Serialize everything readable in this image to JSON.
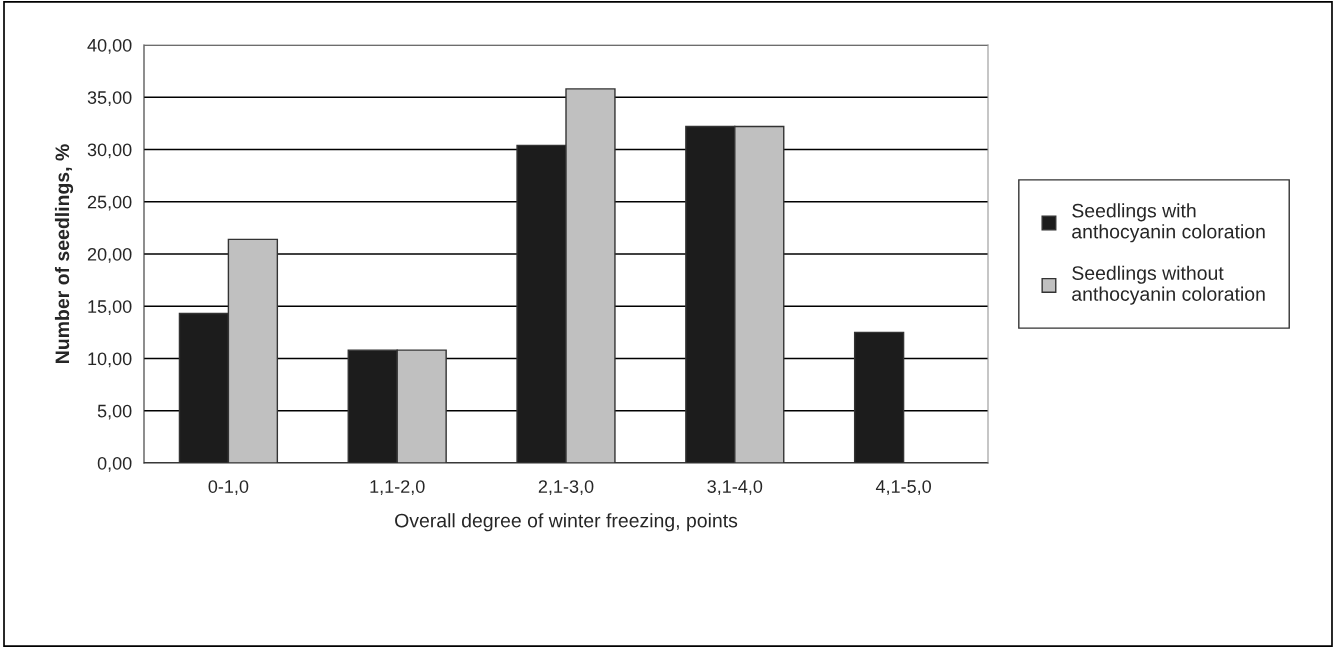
{
  "chart_data": {
    "type": "bar",
    "xlabel": "Overall degree of winter freezing, points",
    "ylabel": "Number of seedlings, %",
    "categories": [
      "0-1,0",
      "1,1-2,0",
      "2,1-3,0",
      "3,1-4,0",
      "4,1-5,0"
    ],
    "series": [
      {
        "name": "Seedlings with anthocyanin coloration",
        "color": "#1c1c1c",
        "values": [
          14.3,
          10.8,
          30.4,
          32.2,
          12.5
        ]
      },
      {
        "name": "Seedlings without anthocyanin coloration",
        "color": "#c0c0c0",
        "values": [
          21.4,
          10.8,
          35.8,
          32.2,
          null
        ]
      }
    ],
    "ylim": [
      0,
      40
    ],
    "yticks": [
      {
        "value": 0,
        "label": "0,00"
      },
      {
        "value": 5,
        "label": "5,00"
      },
      {
        "value": 10,
        "label": "10,00"
      },
      {
        "value": 15,
        "label": "15,00"
      },
      {
        "value": 20,
        "label": "20,00"
      },
      {
        "value": 25,
        "label": "25,00"
      },
      {
        "value": 30,
        "label": "30,00"
      },
      {
        "value": 35,
        "label": "35,00"
      },
      {
        "value": 40,
        "label": "40,00"
      }
    ],
    "grid": "y",
    "legend": "right"
  }
}
